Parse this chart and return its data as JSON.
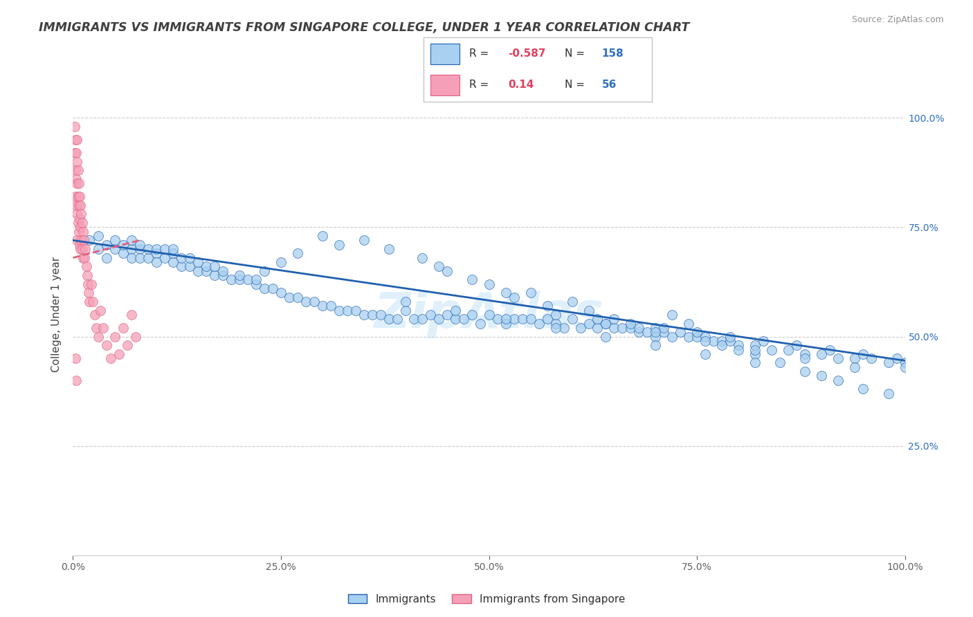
{
  "title": "IMMIGRANTS VS IMMIGRANTS FROM SINGAPORE COLLEGE, UNDER 1 YEAR CORRELATION CHART",
  "source": "Source: ZipAtlas.com",
  "xlabel_bottom": "Immigrants",
  "ylabel": "College, Under 1 year",
  "legend_label1": "Immigrants",
  "legend_label2": "Immigrants from Singapore",
  "R1": -0.587,
  "N1": 158,
  "R2": 0.14,
  "N2": 56,
  "color_blue": "#a8d0f0",
  "color_pink": "#f5a0b8",
  "line_blue": "#2060b0",
  "line_pink": "#e06080",
  "watermark": "ZipAtlas",
  "background_color": "#ffffff",
  "grid_color": "#cccccc",
  "title_color": "#404040",
  "source_color": "#909090",
  "right_axis_color": "#3070c0",
  "xmin": 0.0,
  "xmax": 1.0,
  "ymin": 0.0,
  "ymax": 1.1,
  "yticks_right": [
    0.25,
    0.5,
    0.75,
    1.0
  ],
  "ytick_labels_right": [
    "25.0%",
    "50.0%",
    "75.0%",
    "100.0%"
  ],
  "xticks": [
    0.0,
    0.25,
    0.5,
    0.75,
    1.0
  ],
  "xtick_labels": [
    "0.0%",
    "25.0%",
    "50.0%",
    "75.0%",
    "100.0%"
  ],
  "blue_regression_x0": 0.0,
  "blue_regression_y0": 0.72,
  "blue_regression_x1": 1.0,
  "blue_regression_y1": 0.445,
  "pink_regression_x0": 0.0,
  "pink_regression_y0": 0.68,
  "pink_regression_x1": 0.08,
  "pink_regression_y1": 0.72,
  "blue_x": [
    0.02,
    0.03,
    0.03,
    0.04,
    0.04,
    0.05,
    0.05,
    0.06,
    0.06,
    0.07,
    0.07,
    0.07,
    0.08,
    0.08,
    0.08,
    0.09,
    0.09,
    0.1,
    0.1,
    0.1,
    0.11,
    0.11,
    0.12,
    0.12,
    0.12,
    0.13,
    0.13,
    0.14,
    0.14,
    0.15,
    0.15,
    0.16,
    0.16,
    0.17,
    0.17,
    0.18,
    0.18,
    0.19,
    0.2,
    0.2,
    0.21,
    0.22,
    0.23,
    0.24,
    0.25,
    0.26,
    0.27,
    0.28,
    0.29,
    0.3,
    0.31,
    0.32,
    0.33,
    0.34,
    0.35,
    0.36,
    0.37,
    0.38,
    0.39,
    0.4,
    0.41,
    0.42,
    0.43,
    0.44,
    0.45,
    0.46,
    0.47,
    0.48,
    0.49,
    0.5,
    0.51,
    0.52,
    0.53,
    0.54,
    0.55,
    0.56,
    0.57,
    0.58,
    0.59,
    0.6,
    0.61,
    0.62,
    0.63,
    0.64,
    0.65,
    0.66,
    0.67,
    0.68,
    0.69,
    0.7,
    0.71,
    0.72,
    0.73,
    0.74,
    0.75,
    0.76,
    0.77,
    0.78,
    0.79,
    0.8,
    0.82,
    0.84,
    0.86,
    0.88,
    0.9,
    0.92,
    0.94,
    0.96,
    0.98,
    1.0,
    0.55,
    0.6,
    0.62,
    0.65,
    0.68,
    0.7,
    0.72,
    0.74,
    0.5,
    0.52,
    0.45,
    0.48,
    0.53,
    0.57,
    0.42,
    0.44,
    0.38,
    0.35,
    0.32,
    0.3,
    0.27,
    0.25,
    0.23,
    0.22,
    0.78,
    0.8,
    0.82,
    0.85,
    0.88,
    0.9,
    0.92,
    0.95,
    0.98,
    0.63,
    0.67,
    0.71,
    0.75,
    0.79,
    0.83,
    0.87,
    0.91,
    0.95,
    0.99,
    0.58,
    0.64,
    0.7,
    0.76,
    0.82,
    0.88,
    0.94,
    1.0,
    0.4,
    0.46,
    0.52,
    0.58,
    0.64,
    0.7,
    0.76,
    0.82
  ],
  "blue_y": [
    0.72,
    0.7,
    0.73,
    0.68,
    0.71,
    0.7,
    0.72,
    0.69,
    0.71,
    0.7,
    0.68,
    0.72,
    0.7,
    0.68,
    0.71,
    0.68,
    0.7,
    0.69,
    0.67,
    0.7,
    0.68,
    0.7,
    0.67,
    0.69,
    0.7,
    0.66,
    0.68,
    0.66,
    0.68,
    0.65,
    0.67,
    0.65,
    0.66,
    0.64,
    0.66,
    0.64,
    0.65,
    0.63,
    0.63,
    0.64,
    0.63,
    0.62,
    0.61,
    0.61,
    0.6,
    0.59,
    0.59,
    0.58,
    0.58,
    0.57,
    0.57,
    0.56,
    0.56,
    0.56,
    0.55,
    0.55,
    0.55,
    0.54,
    0.54,
    0.56,
    0.54,
    0.54,
    0.55,
    0.54,
    0.55,
    0.54,
    0.54,
    0.55,
    0.53,
    0.55,
    0.54,
    0.53,
    0.54,
    0.54,
    0.54,
    0.53,
    0.54,
    0.53,
    0.52,
    0.54,
    0.52,
    0.53,
    0.52,
    0.53,
    0.52,
    0.52,
    0.52,
    0.51,
    0.51,
    0.52,
    0.51,
    0.5,
    0.51,
    0.5,
    0.5,
    0.5,
    0.49,
    0.49,
    0.49,
    0.48,
    0.48,
    0.47,
    0.47,
    0.46,
    0.46,
    0.45,
    0.45,
    0.45,
    0.44,
    0.44,
    0.6,
    0.58,
    0.56,
    0.54,
    0.52,
    0.5,
    0.55,
    0.53,
    0.62,
    0.6,
    0.65,
    0.63,
    0.59,
    0.57,
    0.68,
    0.66,
    0.7,
    0.72,
    0.71,
    0.73,
    0.69,
    0.67,
    0.65,
    0.63,
    0.48,
    0.47,
    0.46,
    0.44,
    0.42,
    0.41,
    0.4,
    0.38,
    0.37,
    0.54,
    0.53,
    0.52,
    0.51,
    0.5,
    0.49,
    0.48,
    0.47,
    0.46,
    0.45,
    0.55,
    0.53,
    0.51,
    0.49,
    0.47,
    0.45,
    0.43,
    0.43,
    0.58,
    0.56,
    0.54,
    0.52,
    0.5,
    0.48,
    0.46,
    0.44
  ],
  "pink_x": [
    0.002,
    0.002,
    0.003,
    0.003,
    0.003,
    0.004,
    0.004,
    0.004,
    0.005,
    0.005,
    0.005,
    0.005,
    0.005,
    0.006,
    0.006,
    0.006,
    0.007,
    0.007,
    0.007,
    0.008,
    0.008,
    0.008,
    0.009,
    0.009,
    0.009,
    0.01,
    0.01,
    0.011,
    0.011,
    0.012,
    0.012,
    0.013,
    0.014,
    0.015,
    0.016,
    0.017,
    0.018,
    0.019,
    0.02,
    0.022,
    0.024,
    0.026,
    0.028,
    0.03,
    0.033,
    0.036,
    0.04,
    0.045,
    0.05,
    0.055,
    0.06,
    0.065,
    0.07,
    0.075,
    0.003,
    0.004
  ],
  "pink_y": [
    0.98,
    0.92,
    0.95,
    0.88,
    0.82,
    0.92,
    0.86,
    0.8,
    0.95,
    0.9,
    0.85,
    0.78,
    0.72,
    0.88,
    0.82,
    0.76,
    0.85,
    0.8,
    0.74,
    0.82,
    0.77,
    0.71,
    0.8,
    0.75,
    0.7,
    0.78,
    0.72,
    0.76,
    0.7,
    0.74,
    0.68,
    0.72,
    0.68,
    0.7,
    0.66,
    0.64,
    0.62,
    0.6,
    0.58,
    0.62,
    0.58,
    0.55,
    0.52,
    0.5,
    0.56,
    0.52,
    0.48,
    0.45,
    0.5,
    0.46,
    0.52,
    0.48,
    0.55,
    0.5,
    0.45,
    0.4
  ]
}
